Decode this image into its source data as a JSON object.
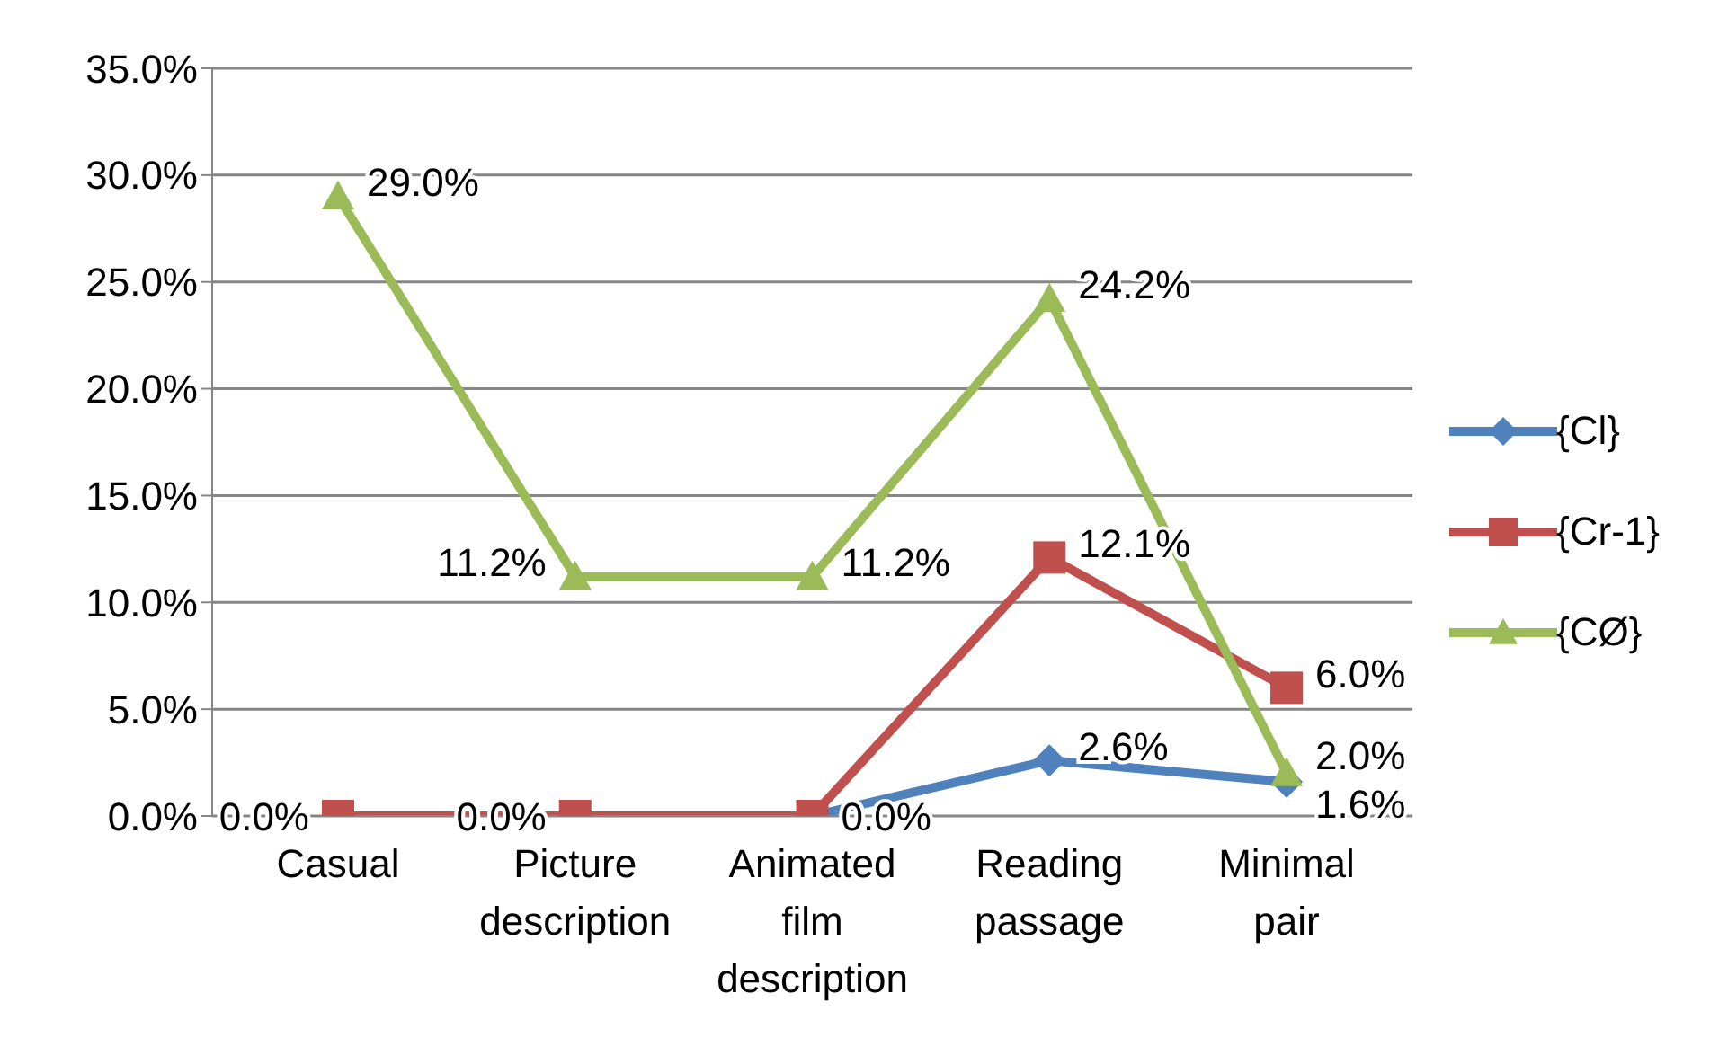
{
  "chart_data": {
    "type": "line",
    "categories": [
      "Casual",
      "Picture description",
      "Animated film description",
      "Reading passage",
      "Minimal pair"
    ],
    "series": [
      {
        "name": "{Cl}",
        "color": "#4f81bd",
        "marker": "diamond",
        "values": [
          null,
          null,
          0,
          2.6,
          1.6
        ],
        "value_labels": [
          null,
          null,
          null,
          "2.6%",
          "1.6%"
        ]
      },
      {
        "name": "{Cr-1}",
        "color": "#c0504d",
        "marker": "square",
        "values": [
          0,
          0,
          0,
          12.1,
          6.0
        ],
        "value_labels": [
          "0.0%",
          "0.0%",
          "0.0%",
          "12.1%",
          "6.0%"
        ]
      },
      {
        "name": "{CØ}",
        "color": "#9bbb59",
        "marker": "triangle",
        "values": [
          29.0,
          11.2,
          11.2,
          24.2,
          2.0
        ],
        "value_labels": [
          "29.0%",
          "11.2%",
          "11.2%",
          "24.2%",
          "2.0%"
        ]
      }
    ],
    "ylim": [
      0,
      35
    ],
    "yticks": [
      {
        "value": 0,
        "label": "0.0%"
      },
      {
        "value": 5,
        "label": "5.0%"
      },
      {
        "value": 10,
        "label": "10.0%"
      },
      {
        "value": 15,
        "label": "15.0%"
      },
      {
        "value": 20,
        "label": "20.0%"
      },
      {
        "value": 25,
        "label": "25.0%"
      },
      {
        "value": 30,
        "label": "30.0%"
      },
      {
        "value": 35,
        "label": "35.0%"
      }
    ],
    "grid": "y",
    "legend": "right",
    "line_style": "solid"
  }
}
